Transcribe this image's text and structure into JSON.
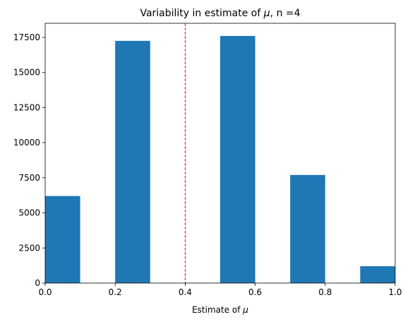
{
  "chart_data": {
    "type": "bar",
    "title_prefix": "Variability in estimate of ",
    "title_symbol": "μ",
    "title_suffix": ", n =4",
    "xlabel_prefix": "Estimate of ",
    "xlabel_symbol": "μ",
    "ylabel": "",
    "xlim": [
      0.0,
      1.0
    ],
    "ylim": [
      0,
      18500
    ],
    "xticks": [
      0.0,
      0.2,
      0.4,
      0.6,
      0.8,
      1.0
    ],
    "xtick_labels": [
      "0.0",
      "0.2",
      "0.4",
      "0.6",
      "0.8",
      "1.0"
    ],
    "yticks": [
      0,
      2500,
      5000,
      7500,
      10000,
      12500,
      15000,
      17500
    ],
    "ytick_labels": [
      "0",
      "2500",
      "5000",
      "7500",
      "10000",
      "12500",
      "15000",
      "17500"
    ],
    "bins": [
      {
        "x0": 0.0,
        "x1": 0.1,
        "value": 6200
      },
      {
        "x0": 0.2,
        "x1": 0.3,
        "value": 17250
      },
      {
        "x0": 0.5,
        "x1": 0.6,
        "value": 17600
      },
      {
        "x0": 0.7,
        "x1": 0.8,
        "value": 7700
      },
      {
        "x0": 0.9,
        "x1": 1.0,
        "value": 1200
      }
    ],
    "reference_line": {
      "x": 0.4,
      "color": "#ff0000",
      "style": "dashed"
    },
    "bar_color": "#1f77b4",
    "grid": false,
    "legend": "none"
  }
}
